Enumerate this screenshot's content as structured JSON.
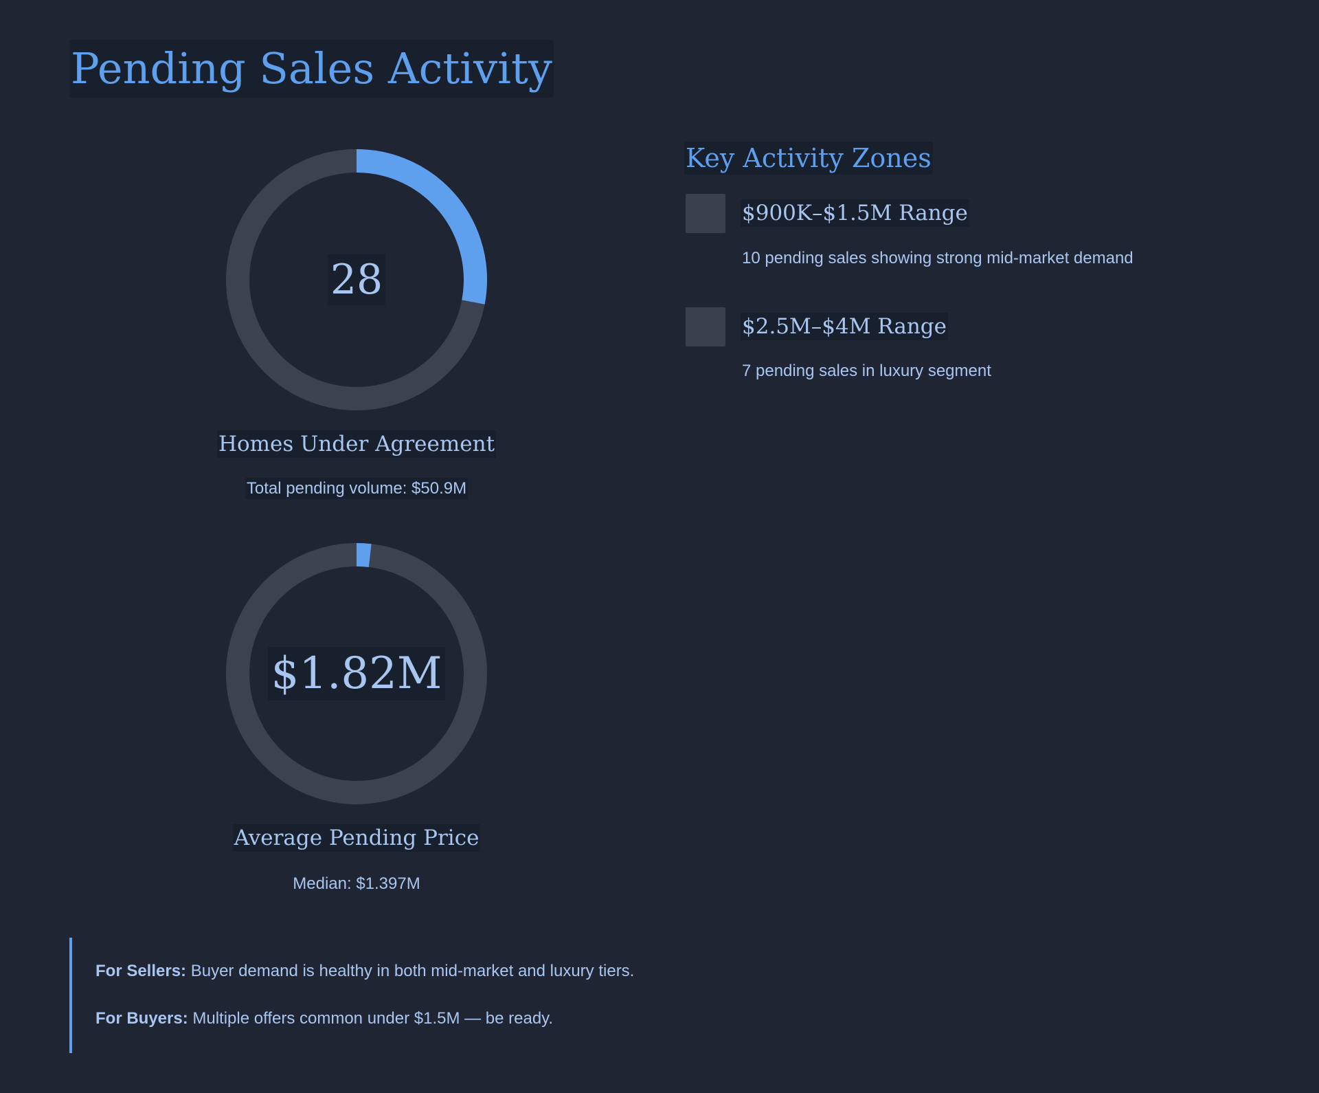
{
  "page": {
    "title": "Pending Sales Activity"
  },
  "gauges": [
    {
      "value": "28",
      "label": "Homes Under Agreement",
      "subtext": "Total pending volume: $50.9M",
      "fill_fraction": 0.28
    },
    {
      "value": "$1.82M",
      "label": "Average Pending Price",
      "subtext": "Median: $1.397M",
      "fill_fraction": 0.0182
    }
  ],
  "zones": {
    "heading": "Key Activity Zones",
    "items": [
      {
        "title": "$900K–$1.5M Range",
        "description": "10 pending sales showing strong mid-market demand"
      },
      {
        "title": "$2.5M–$4M Range",
        "description": "7 pending sales in luxury segment"
      }
    ]
  },
  "notes": [
    {
      "label": "For Sellers:",
      "text": " Buyer demand is healthy in both mid-market and luxury tiers."
    },
    {
      "label": "For Buyers:",
      "text": " Multiple offers common under $1.5M — be ready."
    }
  ],
  "colors": {
    "background": "#1f2533",
    "accent": "#5ea0ee",
    "track": "#3c424f",
    "text": "#a9c6f0"
  }
}
